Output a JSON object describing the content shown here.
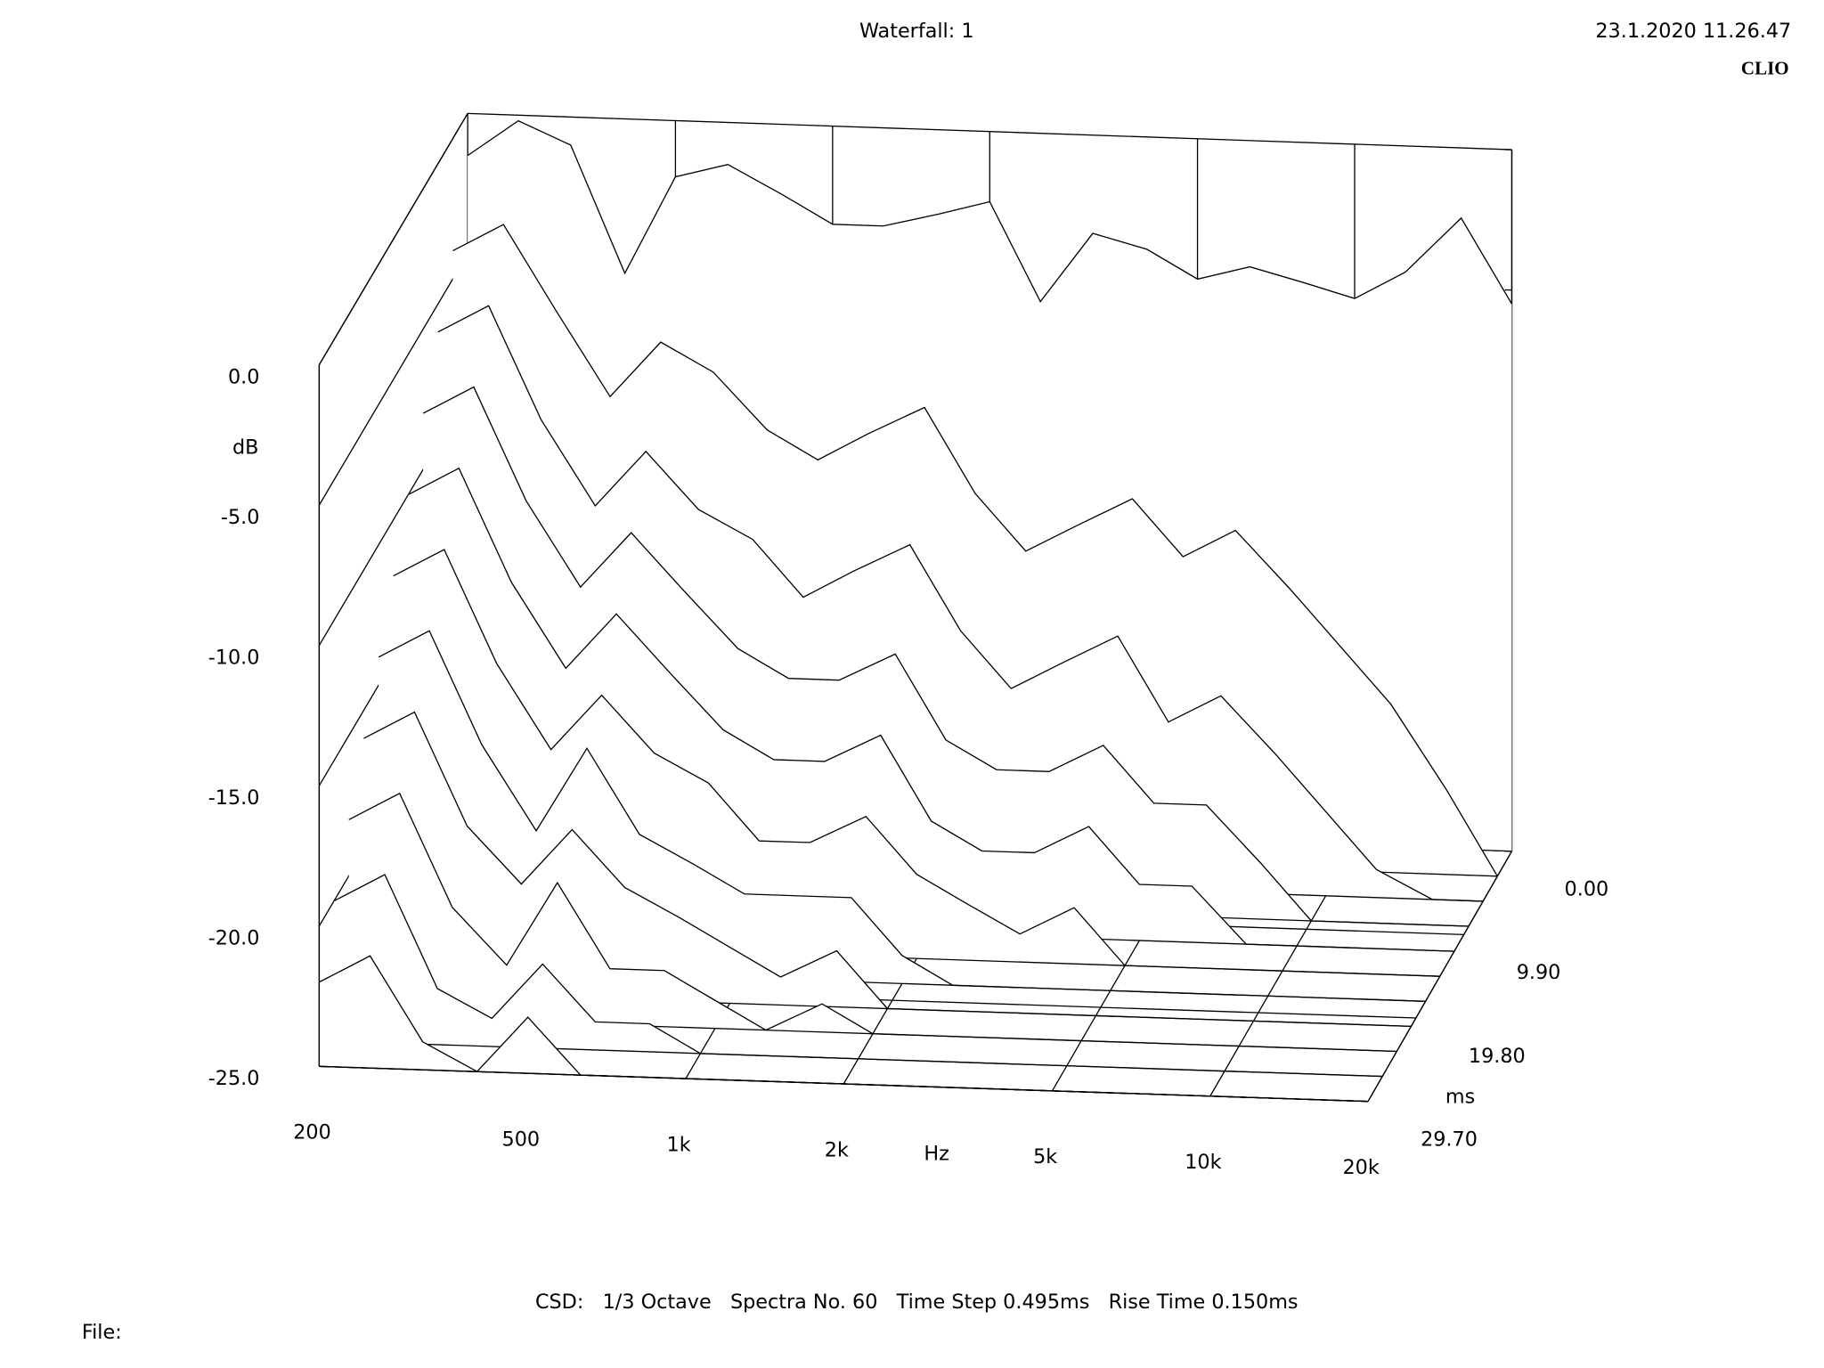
{
  "chart_data": {
    "type": "waterfall",
    "title": "Waterfall: 1",
    "timestamp": "23.1.2020 11.26.47",
    "brand": "CLIO",
    "footer": "CSD:   1/3 Octave   Spectra No. 60   Time Step 0.495ms   Rise Time 0.150ms",
    "file_label": "File:",
    "x_label": "Hz",
    "y_label": "dB",
    "z_label": "ms",
    "xscale": "log",
    "color": "#000000",
    "fill": "#ffffff",
    "xlim": [
      200,
      20000
    ],
    "ylim": [
      -25,
      0
    ],
    "zlim": [
      0,
      29.7
    ],
    "xticks": [
      200,
      500,
      {
        "value": 1000,
        "label": "1k"
      },
      {
        "value": 2000,
        "label": "2k"
      },
      {
        "value": 5000,
        "label": "5k"
      },
      {
        "value": 10000,
        "label": "10k"
      },
      {
        "value": 20000,
        "label": "20k"
      }
    ],
    "yticks": [
      {
        "value": 0,
        "label": "0.0"
      },
      {
        "value": -5,
        "label": "-5.0"
      },
      {
        "value": -10,
        "label": "-10.0"
      },
      {
        "value": -15,
        "label": "-15.0"
      },
      {
        "value": -20,
        "label": "-20.0"
      },
      {
        "value": -25,
        "label": "-25.0"
      }
    ],
    "zticks": [
      {
        "value": 0,
        "label": "0.00"
      },
      {
        "value": 9.9,
        "label": "9.90"
      },
      {
        "value": 19.8,
        "label": "19.80"
      },
      {
        "value": 29.7,
        "label": "29.70"
      }
    ],
    "x": [
      200,
      250,
      315,
      400,
      500,
      630,
      800,
      1000,
      1250,
      1600,
      2000,
      2500,
      3150,
      4000,
      5000,
      6300,
      8000,
      10000,
      12500,
      16000,
      20000
    ],
    "series": [
      {
        "z": 0,
        "values": [
          -1.5,
          -0.2,
          -1,
          -5.5,
          -2,
          -1.5,
          -2.5,
          -3.5,
          -3.5,
          -3,
          -2.5,
          -6,
          -3.5,
          -4,
          -5,
          -4.5,
          -5,
          -5.5,
          -4.5,
          -2.5,
          -5.5
        ]
      },
      {
        "z": 2.97,
        "values": [
          -4,
          -3,
          -6,
          -9,
          -7,
          -8,
          -10,
          -11,
          -10,
          -9,
          -12,
          -14,
          -13,
          -12,
          -14,
          -13,
          -15,
          -17,
          -19,
          -22,
          -25
        ]
      },
      {
        "z": 5.94,
        "values": [
          -6,
          -5,
          -9,
          -12,
          -10,
          -12,
          -13,
          -15,
          -14,
          -13,
          -16,
          -18,
          -17,
          -16,
          -19,
          -18,
          -20,
          -22,
          -24,
          -25,
          -25
        ]
      },
      {
        "z": 8.91,
        "values": [
          -8,
          -7,
          -11,
          -14,
          -12,
          -14,
          -16,
          -17,
          -17,
          -16,
          -19,
          -20,
          -20,
          -19,
          -21,
          -21,
          -23,
          -25,
          -25,
          -25,
          -25
        ]
      },
      {
        "z": 11.88,
        "values": [
          -10,
          -9,
          -13,
          -16,
          -14,
          -16,
          -18,
          -19,
          -19,
          -18,
          -21,
          -22,
          -22,
          -21,
          -23,
          -23,
          -25,
          -25,
          -25,
          -25,
          -25
        ]
      },
      {
        "z": 14.85,
        "values": [
          -12,
          -11,
          -15,
          -18,
          -16,
          -18,
          -19,
          -21,
          -21,
          -20,
          -22,
          -23,
          -24,
          -23,
          -25,
          -25,
          -25,
          -25,
          -25,
          -25,
          -25
        ]
      },
      {
        "z": 17.82,
        "values": [
          -14,
          -13,
          -17,
          -20,
          -17,
          -20,
          -21,
          -22,
          -22,
          -22,
          -24,
          -25,
          -25,
          -25,
          -25,
          -25,
          -25,
          -25,
          -25,
          -25,
          -25
        ]
      },
      {
        "z": 20.79,
        "values": [
          -16,
          -15,
          -19,
          -21,
          -19,
          -21,
          -22,
          -23,
          -24,
          -23,
          -25,
          -25,
          -25,
          -25,
          -25,
          -25,
          -25,
          -25,
          -25,
          -25,
          -25
        ]
      },
      {
        "z": 23.76,
        "values": [
          -18,
          -17,
          -21,
          -23,
          -20,
          -23,
          -23,
          -24,
          -25,
          -24,
          -25,
          -25,
          -25,
          -25,
          -25,
          -25,
          -25,
          -25,
          -25,
          -25,
          -25
        ]
      },
      {
        "z": 26.73,
        "values": [
          -20,
          -19,
          -23,
          -24,
          -22,
          -24,
          -24,
          -25,
          -25,
          -25,
          -25,
          -25,
          -25,
          -25,
          -25,
          -25,
          -25,
          -25,
          -25,
          -25,
          -25
        ]
      },
      {
        "z": 29.7,
        "values": [
          -22,
          -21,
          -24,
          -25,
          -23,
          -25,
          -25,
          -25,
          -25,
          -25,
          -25,
          -25,
          -25,
          -25,
          -25,
          -25,
          -25,
          -25,
          -25,
          -25,
          -25
        ]
      }
    ]
  }
}
